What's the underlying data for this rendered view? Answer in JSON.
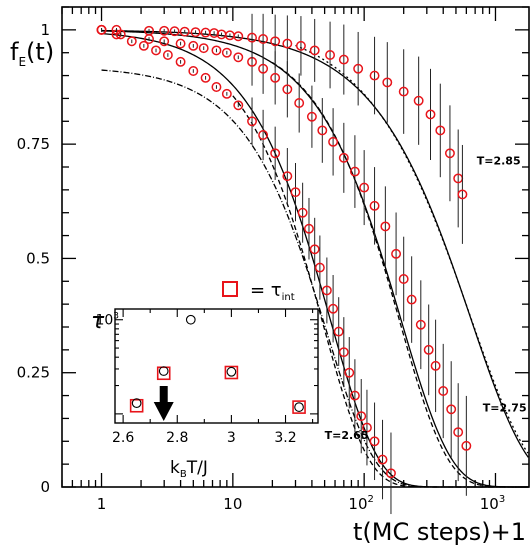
{
  "chart_data": [
    {
      "type": "scatter",
      "ylabel_main": "f",
      "ylabel_sub": "E",
      "ylabel_arg": "(t)",
      "xlabel": "t(MC steps)+1",
      "x_scale": "log",
      "xlim": [
        0.5,
        1800
      ],
      "ylim": [
        0,
        1.05
      ],
      "x_tick_labels": [
        {
          "value": 1,
          "label": "1"
        },
        {
          "value": 10,
          "label": "10"
        },
        {
          "value": 100,
          "label": "10",
          "exp": "2"
        },
        {
          "value": 1000,
          "label": "10",
          "exp": "3"
        }
      ],
      "y_tick_labels": [
        {
          "value": 0,
          "label": "0"
        },
        {
          "value": 0.25,
          "label": "0.25"
        },
        {
          "value": 0.5,
          "label": "0.5"
        },
        {
          "value": 0.75,
          "label": "0.75"
        },
        {
          "value": 1,
          "label": "1"
        }
      ],
      "marker_color": "#e8141a",
      "series": [
        {
          "name": "T=2.65",
          "label_at": [
            50,
            0.105
          ],
          "points": [
            [
              1,
              1.0
            ],
            [
              1.3,
              0.99
            ],
            [
              1.7,
              0.975
            ],
            [
              2.1,
              0.965
            ],
            [
              2.6,
              0.955
            ],
            [
              3.2,
              0.945
            ],
            [
              4.0,
              0.93
            ],
            [
              5.0,
              0.91
            ],
            [
              6.2,
              0.895
            ],
            [
              7.5,
              0.875
            ],
            [
              9.0,
              0.86
            ],
            [
              11,
              0.835
            ],
            [
              14,
              0.8
            ],
            [
              17,
              0.77
            ],
            [
              21,
              0.73
            ],
            [
              26,
              0.68
            ],
            [
              30,
              0.645
            ],
            [
              34,
              0.6
            ],
            [
              38,
              0.565
            ],
            [
              42,
              0.52
            ],
            [
              46,
              0.48
            ],
            [
              52,
              0.43
            ],
            [
              58,
              0.39
            ],
            [
              64,
              0.34
            ],
            [
              70,
              0.295
            ],
            [
              77,
              0.25
            ],
            [
              85,
              0.2
            ],
            [
              95,
              0.155
            ],
            [
              105,
              0.13
            ],
            [
              120,
              0.1
            ],
            [
              138,
              0.06
            ],
            [
              160,
              0.03
            ]
          ]
        },
        {
          "name": "T=2.75",
          "label_at": [
            800,
            0.165
          ],
          "points": [
            [
              1,
              1.0
            ],
            [
              1.4,
              0.99
            ],
            [
              2.3,
              0.98
            ],
            [
              3.0,
              0.975
            ],
            [
              4.0,
              0.97
            ],
            [
              5.0,
              0.965
            ],
            [
              6.0,
              0.96
            ],
            [
              7.5,
              0.955
            ],
            [
              9.0,
              0.95
            ],
            [
              11,
              0.94
            ],
            [
              14,
              0.93
            ],
            [
              17,
              0.915
            ],
            [
              21,
              0.895
            ],
            [
              26,
              0.87
            ],
            [
              32,
              0.84
            ],
            [
              40,
              0.81
            ],
            [
              48,
              0.78
            ],
            [
              58,
              0.755
            ],
            [
              70,
              0.72
            ],
            [
              85,
              0.69
            ],
            [
              100,
              0.655
            ],
            [
              120,
              0.615
            ],
            [
              145,
              0.57
            ],
            [
              175,
              0.51
            ],
            [
              200,
              0.455
            ],
            [
              230,
              0.41
            ],
            [
              270,
              0.355
            ],
            [
              310,
              0.3
            ],
            [
              350,
              0.265
            ],
            [
              400,
              0.21
            ],
            [
              460,
              0.17
            ],
            [
              520,
              0.12
            ],
            [
              600,
              0.09
            ]
          ]
        },
        {
          "name": "T=2.85",
          "label_at": [
            720,
            0.705
          ],
          "points": [
            [
              1,
              1.0
            ],
            [
              1.3,
              1.0
            ],
            [
              2.3,
              0.998
            ],
            [
              3.0,
              0.998
            ],
            [
              3.6,
              0.997
            ],
            [
              4.3,
              0.996
            ],
            [
              5.2,
              0.995
            ],
            [
              6.2,
              0.994
            ],
            [
              7.2,
              0.993
            ],
            [
              8.2,
              0.99
            ],
            [
              9.5,
              0.988
            ],
            [
              11,
              0.986
            ],
            [
              14,
              0.983
            ],
            [
              17,
              0.98
            ],
            [
              21,
              0.975
            ],
            [
              26,
              0.97
            ],
            [
              33,
              0.965
            ],
            [
              42,
              0.955
            ],
            [
              55,
              0.945
            ],
            [
              70,
              0.935
            ],
            [
              90,
              0.915
            ],
            [
              120,
              0.9
            ],
            [
              150,
              0.885
            ],
            [
              200,
              0.865
            ],
            [
              260,
              0.845
            ],
            [
              320,
              0.815
            ],
            [
              380,
              0.78
            ],
            [
              450,
              0.73
            ],
            [
              520,
              0.675
            ],
            [
              560,
              0.64
            ]
          ]
        }
      ],
      "inset": {
        "ylabel": "τ",
        "xlabel_main": "k",
        "xlabel_sub": "B",
        "xlabel_rest": "T/J",
        "y_scale": "log",
        "xlim": [
          2.57,
          3.32
        ],
        "ylim": [
          80,
          1300
        ],
        "x_tick_labels": [
          {
            "value": 2.6,
            "label": "2.6"
          },
          {
            "value": 2.8,
            "label": "2.8"
          },
          {
            "value": 3.0,
            "label": "3"
          },
          {
            "value": 3.2,
            "label": "3.2"
          }
        ],
        "y_tick_label": {
          "value": 1000,
          "label": "10",
          "exp": "3"
        },
        "circles": [
          [
            2.65,
            130
          ],
          [
            2.75,
            285
          ],
          [
            2.85,
            1000
          ],
          [
            3.0,
            280
          ],
          [
            3.25,
            118
          ]
        ],
        "squares": [
          [
            2.65,
            122
          ],
          [
            2.75,
            270
          ],
          [
            3.0,
            275
          ],
          [
            3.25,
            118
          ]
        ],
        "arrow_at": 2.75,
        "legend_label": "= τ",
        "legend_sub": "int"
      }
    }
  ]
}
